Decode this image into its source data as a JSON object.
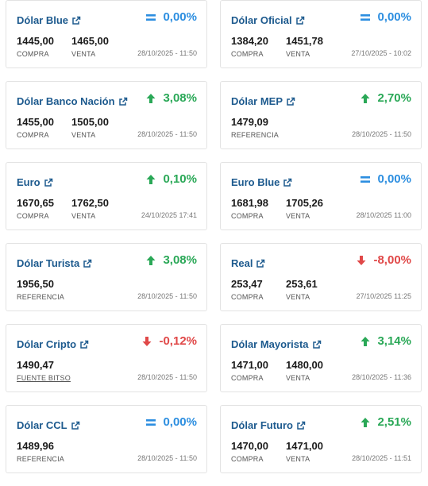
{
  "colors": {
    "title": "#1d5a8e",
    "up": "#2aa857",
    "down": "#e04848",
    "equal": "#2c8ee0"
  },
  "cards": [
    {
      "title": "Dólar Blue",
      "change": "0,00%",
      "trend": "eq",
      "values": [
        {
          "value": "1445,00",
          "label": "COMPRA"
        },
        {
          "value": "1465,00",
          "label": "VENTA"
        }
      ],
      "date": "28/10/2025 - 11:50"
    },
    {
      "title": "Dólar Oficial",
      "change": "0,00%",
      "trend": "eq",
      "values": [
        {
          "value": "1384,20",
          "label": "COMPRA"
        },
        {
          "value": "1451,78",
          "label": "VENTA"
        }
      ],
      "date": "27/10/2025 - 10:02"
    },
    {
      "title": "Dólar Banco Nación",
      "change": "3,08%",
      "trend": "up",
      "values": [
        {
          "value": "1455,00",
          "label": "COMPRA"
        },
        {
          "value": "1505,00",
          "label": "VENTA"
        }
      ],
      "date": "28/10/2025 - 11:50"
    },
    {
      "title": "Dólar MEP",
      "change": "2,70%",
      "trend": "up",
      "values": [
        {
          "value": "1479,09",
          "label": "REFERENCIA"
        }
      ],
      "date": "28/10/2025 - 11:50"
    },
    {
      "title": "Euro",
      "change": "0,10%",
      "trend": "up",
      "values": [
        {
          "value": "1670,65",
          "label": "COMPRA"
        },
        {
          "value": "1762,50",
          "label": "VENTA"
        }
      ],
      "date": "24/10/2025 17:41"
    },
    {
      "title": "Euro Blue",
      "change": "0,00%",
      "trend": "eq",
      "values": [
        {
          "value": "1681,98",
          "label": "COMPRA"
        },
        {
          "value": "1705,26",
          "label": "VENTA"
        }
      ],
      "date": "28/10/2025 11:00"
    },
    {
      "title": "Dólar Turista",
      "change": "3,08%",
      "trend": "up",
      "values": [
        {
          "value": "1956,50",
          "label": "REFERENCIA"
        }
      ],
      "date": "28/10/2025 - 11:50"
    },
    {
      "title": "Real",
      "change": "-8,00%",
      "trend": "down",
      "values": [
        {
          "value": "253,47",
          "label": "COMPRA"
        },
        {
          "value": "253,61",
          "label": "VENTA"
        }
      ],
      "date": "27/10/2025 11:25"
    },
    {
      "title": "Dólar Cripto",
      "change": "-0,12%",
      "trend": "down",
      "values": [
        {
          "value": "1490,47",
          "label": "FUENTE BITSO",
          "link": true
        }
      ],
      "date": "28/10/2025 - 11:50"
    },
    {
      "title": "Dólar Mayorista",
      "change": "3,14%",
      "trend": "up",
      "values": [
        {
          "value": "1471,00",
          "label": "COMPRA"
        },
        {
          "value": "1480,00",
          "label": "VENTA"
        }
      ],
      "date": "28/10/2025 - 11:36"
    },
    {
      "title": "Dólar CCL",
      "change": "0,00%",
      "trend": "eq",
      "values": [
        {
          "value": "1489,96",
          "label": "REFERENCIA"
        }
      ],
      "date": "28/10/2025 - 11:50"
    },
    {
      "title": "Dólar Futuro",
      "change": "2,51%",
      "trend": "up",
      "values": [
        {
          "value": "1470,00",
          "label": "COMPRA"
        },
        {
          "value": "1471,00",
          "label": "VENTA"
        }
      ],
      "date": "28/10/2025 - 11:51"
    }
  ]
}
